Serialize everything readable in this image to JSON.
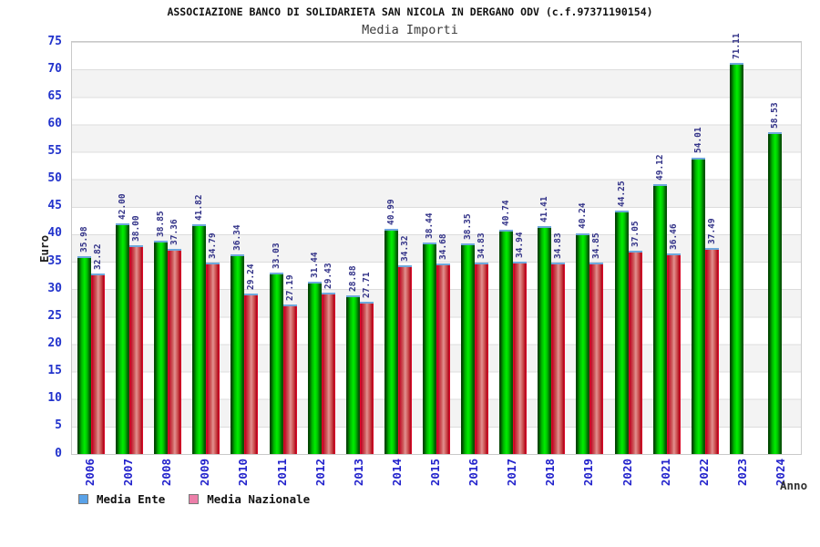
{
  "header": {
    "title": "ASSOCIAZIONE BANCO DI SOLIDARIETA SAN NICOLA IN DERGANO ODV (c.f.97371190154)",
    "subtitle": "Media Importi"
  },
  "axes": {
    "y_label": "Euro",
    "x_label": "Anno",
    "y_ticks": [
      0,
      5,
      10,
      15,
      20,
      25,
      30,
      35,
      40,
      45,
      50,
      55,
      60,
      65,
      70,
      75
    ],
    "y_max": 75
  },
  "legend": {
    "items": [
      {
        "label": "Media Ente",
        "swatch": "blue"
      },
      {
        "label": "Media Nazionale",
        "swatch": "pink"
      }
    ]
  },
  "colors": {
    "tick": "#2233cc",
    "value_label": "#333388",
    "year_label": "#2222cc",
    "green_core": "#00ee00",
    "red_core": "#e39090",
    "cap": "#6fa8dc",
    "legend_blue": "#5aa2e8",
    "legend_pink": "#ec7fa9"
  },
  "chart_data": {
    "type": "bar",
    "title": "Media Importi",
    "xlabel": "Anno",
    "ylabel": "Euro",
    "ylim": [
      0,
      75
    ],
    "grid": "horizontal-bands",
    "legend_position": "bottom-left",
    "categories": [
      "2006",
      "2007",
      "2008",
      "2009",
      "2010",
      "2011",
      "2012",
      "2013",
      "2014",
      "2015",
      "2016",
      "2017",
      "2018",
      "2019",
      "2020",
      "2021",
      "2022",
      "2023",
      "2024"
    ],
    "series": [
      {
        "name": "Media Ente",
        "color": "green",
        "values": [
          35.98,
          42.0,
          38.85,
          41.82,
          36.34,
          33.03,
          31.44,
          28.88,
          40.99,
          38.44,
          38.35,
          40.74,
          41.41,
          40.24,
          44.25,
          49.12,
          54.01,
          71.11,
          58.53
        ]
      },
      {
        "name": "Media Nazionale",
        "color": "red",
        "values": [
          32.82,
          38.0,
          37.36,
          34.79,
          29.24,
          27.19,
          29.43,
          27.71,
          34.32,
          34.68,
          34.83,
          34.94,
          34.83,
          34.85,
          37.05,
          36.46,
          37.49,
          null,
          null
        ]
      }
    ]
  }
}
